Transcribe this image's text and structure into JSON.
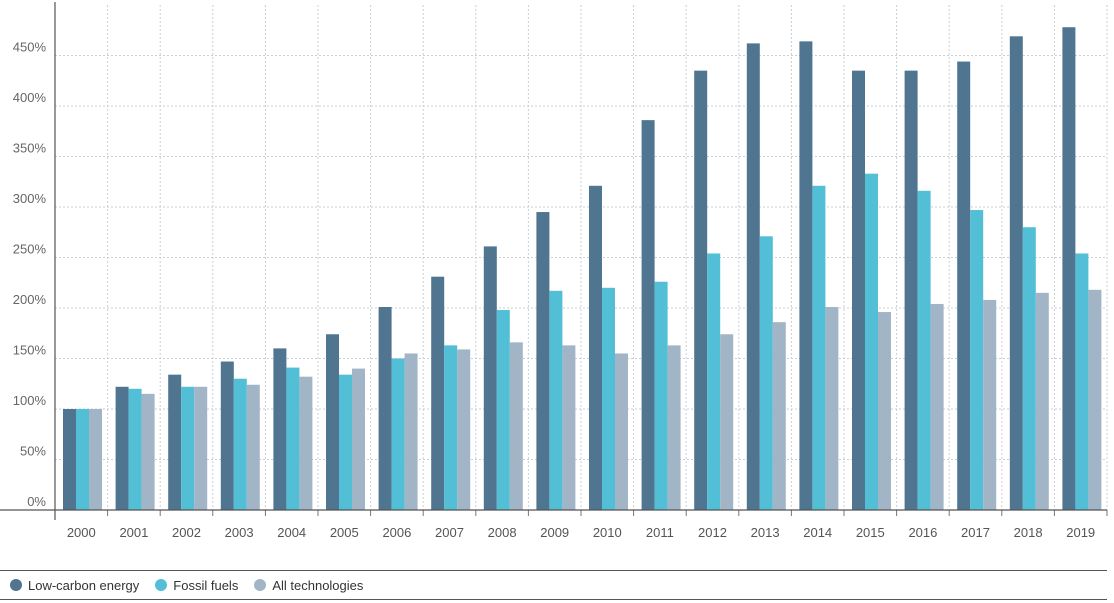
{
  "chart_data": {
    "type": "bar",
    "categories": [
      "2000",
      "2001",
      "2002",
      "2003",
      "2004",
      "2005",
      "2006",
      "2007",
      "2008",
      "2009",
      "2010",
      "2011",
      "2012",
      "2013",
      "2014",
      "2015",
      "2016",
      "2017",
      "2018",
      "2019"
    ],
    "series": [
      {
        "name": "Low-carbon energy",
        "color": "#4f7590",
        "values": [
          100,
          122,
          134,
          147,
          160,
          174,
          201,
          231,
          261,
          295,
          321,
          386,
          435,
          462,
          464,
          435,
          435,
          444,
          469,
          478
        ]
      },
      {
        "name": "Fossil fuels",
        "color": "#52bfd6",
        "values": [
          100,
          120,
          122,
          130,
          141,
          134,
          150,
          163,
          198,
          217,
          220,
          226,
          254,
          271,
          321,
          333,
          316,
          297,
          280,
          254
        ]
      },
      {
        "name": "All technologies",
        "color": "#a2b5c6",
        "values": [
          100,
          115,
          122,
          124,
          132,
          140,
          155,
          159,
          166,
          163,
          155,
          163,
          174,
          186,
          201,
          196,
          204,
          208,
          215,
          218
        ]
      }
    ],
    "yticks": [
      "0%",
      "50%",
      "100%",
      "150%",
      "200%",
      "250%",
      "300%",
      "350%",
      "400%",
      "450%"
    ],
    "ylim": [
      0,
      500
    ],
    "grid": true,
    "legend_position": "bottom",
    "title": "",
    "xlabel": "",
    "ylabel": ""
  }
}
